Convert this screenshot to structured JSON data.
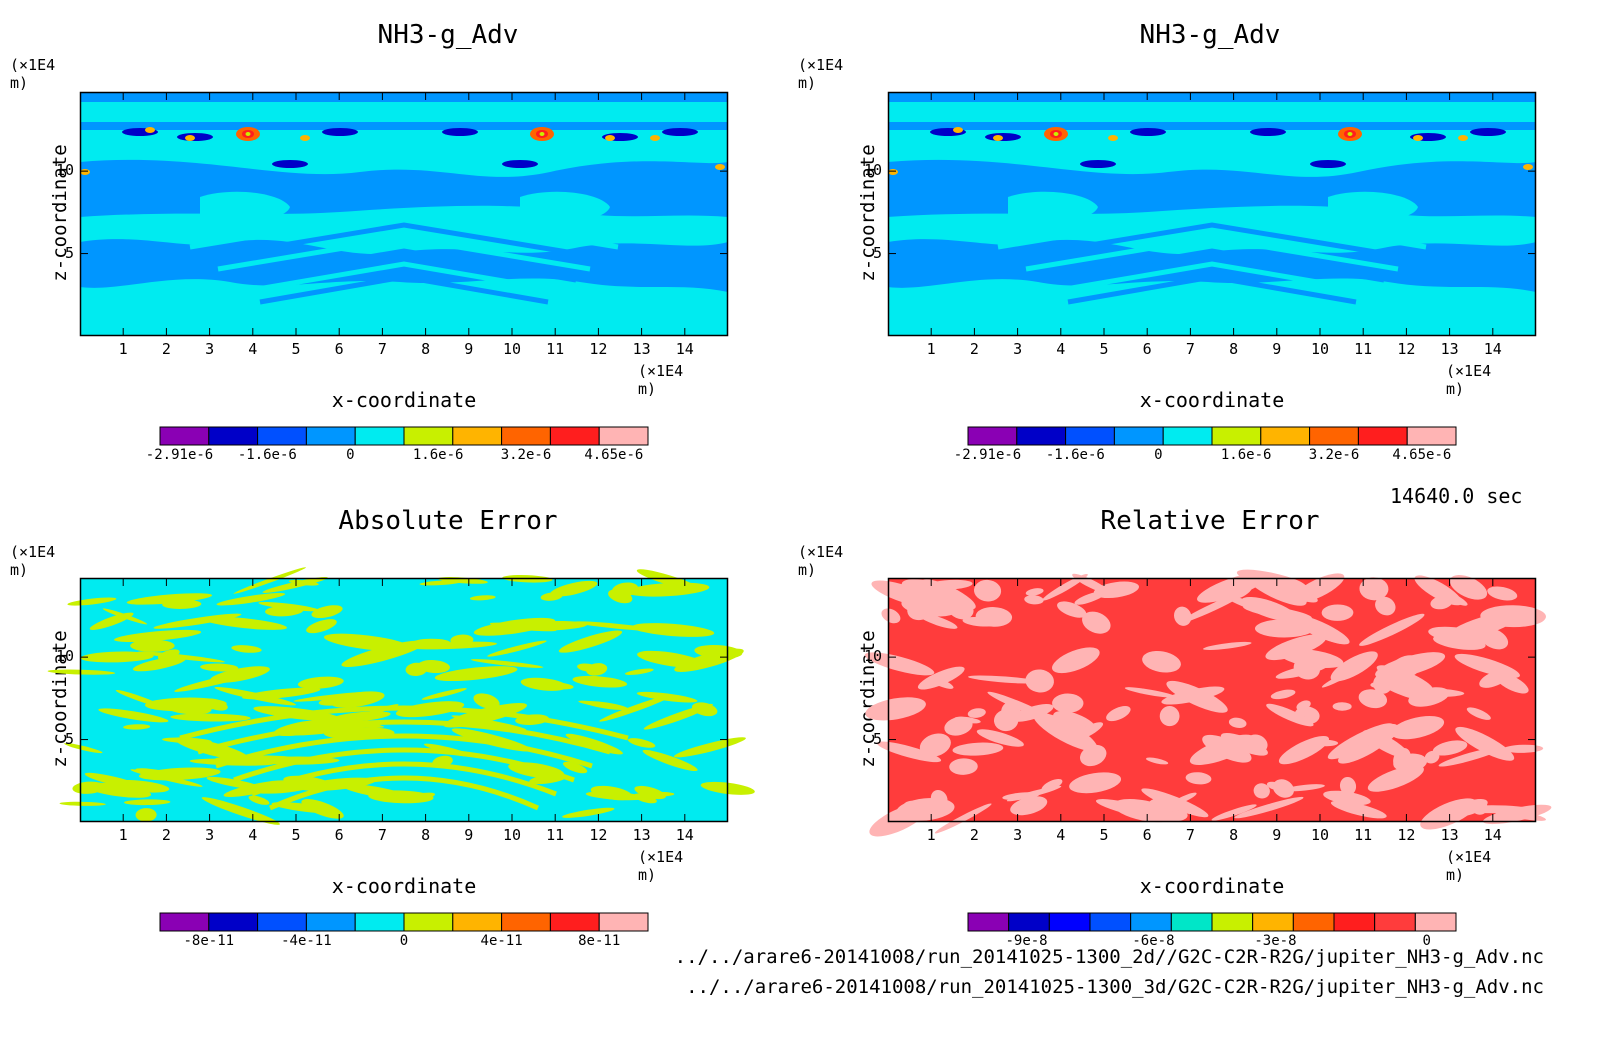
{
  "chart_data": [
    {
      "type": "heatmap",
      "title": "NH3-g_Adv",
      "xlabel": "x-coordinate",
      "ylabel": "z-coordinate",
      "x_unit": "(×1E4 m)",
      "y_unit": "(×1E4 m)",
      "xticks": [
        "1",
        "2",
        "3",
        "4",
        "5",
        "6",
        "7",
        "8",
        "9",
        "10",
        "11",
        "12",
        "13",
        "14"
      ],
      "yticks": [
        "5",
        "10"
      ],
      "xlim": [
        0,
        15
      ],
      "ylim": [
        0,
        14.8
      ],
      "colorbar": {
        "colors": [
          "#8a00b4",
          "#0000c8",
          "#0050ff",
          "#0096ff",
          "#00ebf0",
          "#c8f000",
          "#ffb400",
          "#ff6400",
          "#ff1e1e",
          "#ffb4b4"
        ],
        "tick_labels": [
          "-2.91e-6",
          "-1.6e-6",
          "0",
          "1.6e-6",
          "3.2e-6",
          "4.65e-6"
        ]
      }
    },
    {
      "type": "heatmap",
      "title": "NH3-g_Adv",
      "xlabel": "x-coordinate",
      "ylabel": "z-coordinate",
      "x_unit": "(×1E4 m)",
      "y_unit": "(×1E4 m)",
      "xticks": [
        "1",
        "2",
        "3",
        "4",
        "5",
        "6",
        "7",
        "8",
        "9",
        "10",
        "11",
        "12",
        "13",
        "14"
      ],
      "yticks": [
        "5",
        "10"
      ],
      "xlim": [
        0,
        15
      ],
      "ylim": [
        0,
        14.8
      ],
      "colorbar": {
        "colors": [
          "#8a00b4",
          "#0000c8",
          "#0050ff",
          "#0096ff",
          "#00ebf0",
          "#c8f000",
          "#ffb400",
          "#ff6400",
          "#ff1e1e",
          "#ffb4b4"
        ],
        "tick_labels": [
          "-2.91e-6",
          "-1.6e-6",
          "0",
          "1.6e-6",
          "3.2e-6",
          "4.65e-6"
        ]
      }
    },
    {
      "type": "heatmap",
      "title": "Absolute Error",
      "xlabel": "x-coordinate",
      "ylabel": "z-coordinate",
      "x_unit": "(×1E4 m)",
      "y_unit": "(×1E4 m)",
      "xticks": [
        "1",
        "2",
        "3",
        "4",
        "5",
        "6",
        "7",
        "8",
        "9",
        "10",
        "11",
        "12",
        "13",
        "14"
      ],
      "yticks": [
        "5",
        "10"
      ],
      "xlim": [
        0,
        15
      ],
      "ylim": [
        0,
        14.8
      ],
      "colorbar": {
        "colors": [
          "#8a00b4",
          "#0000c8",
          "#0050ff",
          "#0096ff",
          "#00ebf0",
          "#c8f000",
          "#ffb400",
          "#ff6400",
          "#ff1e1e",
          "#ffb4b4"
        ],
        "tick_labels": [
          "-8e-11",
          "-4e-11",
          "0",
          "4e-11",
          "8e-11"
        ]
      }
    },
    {
      "type": "heatmap",
      "title": "Relative Error",
      "xlabel": "x-coordinate",
      "ylabel": "z-coordinate",
      "x_unit": "(×1E4 m)",
      "y_unit": "(×1E4 m)",
      "xticks": [
        "1",
        "2",
        "3",
        "4",
        "5",
        "6",
        "7",
        "8",
        "9",
        "10",
        "11",
        "12",
        "13",
        "14"
      ],
      "yticks": [
        "5",
        "10"
      ],
      "xlim": [
        0,
        15
      ],
      "ylim": [
        0,
        14.8
      ],
      "colorbar": {
        "colors": [
          "#8a00b4",
          "#0000c8",
          "#0000ff",
          "#0050ff",
          "#0096ff",
          "#00e6c8",
          "#c8f000",
          "#ffb400",
          "#ff6400",
          "#ff1e1e",
          "#ff3c3c",
          "#ffb4b4"
        ],
        "tick_labels": [
          "-9e-8",
          "-6e-8",
          "-3e-8",
          "0"
        ]
      }
    }
  ],
  "time_label": "14640.0 sec",
  "footer": [
    "../../arare6-20141008/run_20141025-1300_2d//G2C-C2R-R2G/jupiter_NH3-g_Adv.nc",
    "../../arare6-20141008/run_20141025-1300_3d/G2C-C2R-R2G/jupiter_NH3-g_Adv.nc"
  ]
}
